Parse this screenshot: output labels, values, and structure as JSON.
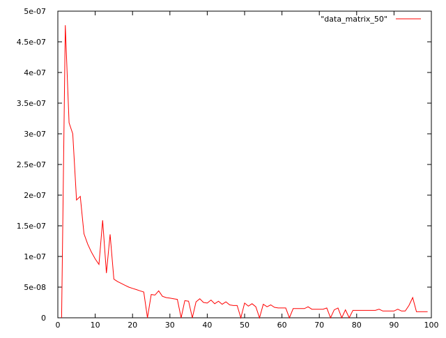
{
  "chart_data": {
    "type": "line",
    "title": "",
    "xlabel": "",
    "ylabel": "",
    "xlim": [
      0,
      100
    ],
    "ylim": [
      0,
      5e-07
    ],
    "x_ticks": [
      0,
      10,
      20,
      30,
      40,
      50,
      60,
      70,
      80,
      90,
      100
    ],
    "x_tick_labels": [
      "0",
      "10",
      "20",
      "30",
      "40",
      "50",
      "60",
      "70",
      "80",
      "90",
      "100"
    ],
    "y_ticks": [
      0,
      5e-08,
      1e-07,
      1.5e-07,
      2e-07,
      2.5e-07,
      3e-07,
      3.5e-07,
      4e-07,
      4.5e-07,
      5e-07
    ],
    "y_tick_labels": [
      "0",
      "5e-08",
      "1e-07",
      "1.5e-07",
      "2e-07",
      "2.5e-07",
      "3e-07",
      "3.5e-07",
      "4e-07",
      "4.5e-07",
      "5e-07"
    ],
    "grid": false,
    "legend_position": "top-right",
    "series": [
      {
        "name": "\"data_matrix_50\"",
        "color": "#ff0000",
        "x": [
          1,
          2,
          3,
          4,
          5,
          6,
          7,
          8,
          9,
          10,
          11,
          12,
          13,
          14,
          15,
          16,
          17,
          18,
          19,
          20,
          21,
          22,
          23,
          24,
          25,
          26,
          27,
          28,
          29,
          30,
          31,
          32,
          33,
          34,
          35,
          36,
          37,
          38,
          39,
          40,
          41,
          42,
          43,
          44,
          45,
          46,
          47,
          48,
          49,
          50,
          51,
          52,
          53,
          54,
          55,
          56,
          57,
          58,
          59,
          60,
          61,
          62,
          63,
          64,
          65,
          66,
          67,
          68,
          69,
          70,
          71,
          72,
          73,
          74,
          75,
          76,
          77,
          78,
          79,
          80,
          81,
          82,
          83,
          84,
          85,
          86,
          87,
          88,
          89,
          90,
          91,
          92,
          93,
          94,
          95,
          96,
          97,
          98,
          99
        ],
        "y": [
          0,
          4.77e-07,
          3.18e-07,
          3e-07,
          1.92e-07,
          1.98e-07,
          1.37e-07,
          1.2e-07,
          1.07e-07,
          9.6e-08,
          8.7e-08,
          1.59e-07,
          7.3e-08,
          1.36e-07,
          6.3e-08,
          5.9e-08,
          5.6e-08,
          5.3e-08,
          5e-08,
          4.8e-08,
          4.6e-08,
          4.4e-08,
          4.2e-08,
          0,
          3.8e-08,
          3.7e-08,
          4.4e-08,
          3.5e-08,
          3.3e-08,
          3.2e-08,
          3.1e-08,
          3e-08,
          0,
          2.8e-08,
          2.7e-08,
          0,
          2.6e-08,
          3.1e-08,
          2.5e-08,
          2.4e-08,
          2.9e-08,
          2.3e-08,
          2.7e-08,
          2.2e-08,
          2.6e-08,
          2.1e-08,
          2e-08,
          2e-08,
          0,
          2.4e-08,
          1.9e-08,
          2.3e-08,
          1.8e-08,
          0,
          2.2e-08,
          1.8e-08,
          2.1e-08,
          1.7e-08,
          1.6e-08,
          1.6e-08,
          1.6e-08,
          0,
          1.5e-08,
          1.5e-08,
          1.5e-08,
          1.5e-08,
          1.8e-08,
          1.4e-08,
          1.4e-08,
          1.4e-08,
          1.4e-08,
          1.6e-08,
          0,
          1.3e-08,
          1.6e-08,
          0,
          1.3e-08,
          0,
          1.2e-08,
          1.2e-08,
          1.2e-08,
          1.2e-08,
          1.2e-08,
          1.2e-08,
          1.2e-08,
          1.4e-08,
          1.1e-08,
          1.1e-08,
          1.1e-08,
          1.1e-08,
          1.4e-08,
          1.1e-08,
          1.1e-08,
          2e-08,
          3.3e-08,
          1e-08,
          1e-08,
          1e-08,
          1e-08
        ]
      }
    ]
  }
}
